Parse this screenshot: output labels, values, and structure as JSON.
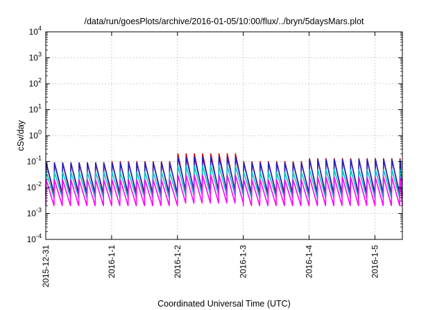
{
  "chart_data": {
    "type": "line",
    "title": "/data/run/goesPlots/archive/2016-01-05/10:00/flux/../bryn/5daysMars.plot",
    "xlabel": "Coordinated Universal Time (UTC)",
    "ylabel": "cSv/day",
    "y_scale": "log",
    "ylim": [
      0.0001,
      10000
    ],
    "y_ticks": [
      {
        "base": "10",
        "exp": "-4",
        "value": 0.0001
      },
      {
        "base": "10",
        "exp": "-3",
        "value": 0.001
      },
      {
        "base": "10",
        "exp": "-2",
        "value": 0.01
      },
      {
        "base": "10",
        "exp": "-1",
        "value": 0.1
      },
      {
        "base": "10",
        "exp": "0",
        "value": 1
      },
      {
        "base": "10",
        "exp": "1",
        "value": 10
      },
      {
        "base": "10",
        "exp": "2",
        "value": 100
      },
      {
        "base": "10",
        "exp": "3",
        "value": 1000
      },
      {
        "base": "10",
        "exp": "4",
        "value": 10000
      }
    ],
    "xlim": [
      "2015-12-31 00:00",
      "2016-01-05 10:00"
    ],
    "x_ticks": [
      "2015-12-31",
      "2016-1-1",
      "2016-1-2",
      "2016-1-3",
      "2016-1-4",
      "2016-1-5"
    ],
    "grid": true,
    "legend": "none",
    "sawtooth_period_hours": 3,
    "series": [
      {
        "color": "#d40000",
        "peak_values": [
          0.09,
          0.1,
          0.2,
          0.1,
          0.13
        ],
        "trough_values": [
          0.005,
          0.005,
          0.007,
          0.005,
          0.005
        ]
      },
      {
        "color": "#2020c0",
        "peak_values": [
          0.09,
          0.09,
          0.15,
          0.09,
          0.12
        ],
        "trough_values": [
          0.006,
          0.006,
          0.008,
          0.006,
          0.006
        ]
      },
      {
        "color": "#00c8c8",
        "peak_values": [
          0.04,
          0.04,
          0.07,
          0.04,
          0.05
        ],
        "trough_values": [
          0.004,
          0.004,
          0.005,
          0.004,
          0.004
        ]
      },
      {
        "color": "#ff00ff",
        "peak_values": [
          0.02,
          0.02,
          0.03,
          0.02,
          0.025
        ],
        "trough_values": [
          0.002,
          0.002,
          0.0025,
          0.002,
          0.002
        ]
      }
    ]
  }
}
